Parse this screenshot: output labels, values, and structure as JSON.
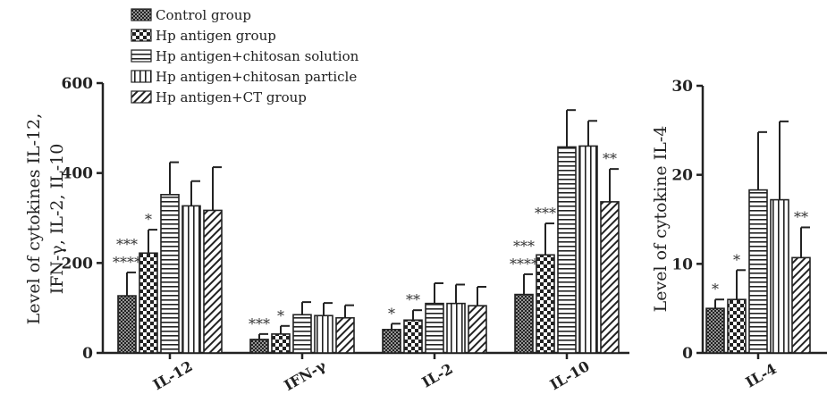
{
  "legend": [
    {
      "label": "Control group",
      "pattern": "pat-cross"
    },
    {
      "label": "Hp antigen group",
      "pattern": "pat-checker"
    },
    {
      "label": "Hp antigen+chitosan solution",
      "pattern": "pat-hstripe"
    },
    {
      "label": "Hp antigen+chitosan particle",
      "pattern": "pat-vstripe"
    },
    {
      "label": "Hp antigen+CT group",
      "pattern": "pat-diag"
    }
  ],
  "colors": {
    "ink": "#222222",
    "bar_fill": "#ffffff"
  },
  "chart_data": [
    {
      "type": "bar",
      "ylabel_lines": [
        "Level of cytokines IL-12,",
        "IFN-γ, IL-2, IL-10"
      ],
      "ylim": [
        0,
        600
      ],
      "yticks": [
        "0",
        "200",
        "400",
        "600"
      ],
      "categories": [
        "IL-12",
        "IFN-γ",
        "IL-2",
        "IL-10"
      ],
      "series": [
        {
          "name": "Control group",
          "values": [
            127,
            30,
            52,
            130
          ],
          "errors": [
            52,
            12,
            13,
            45
          ],
          "sig": [
            "***\n****",
            "***",
            "*",
            "***\n****"
          ]
        },
        {
          "name": "Hp antigen group",
          "values": [
            222,
            42,
            73,
            218
          ],
          "errors": [
            52,
            18,
            22,
            70
          ],
          "sig": [
            "*",
            "*",
            "**",
            "***"
          ]
        },
        {
          "name": "Hp antigen+chitosan solution",
          "values": [
            352,
            85,
            110,
            458
          ],
          "errors": [
            72,
            28,
            45,
            82
          ],
          "sig": [
            "",
            "",
            "",
            ""
          ]
        },
        {
          "name": "Hp antigen+chitosan particle",
          "values": [
            327,
            83,
            110,
            460
          ],
          "errors": [
            55,
            28,
            42,
            56
          ],
          "sig": [
            "",
            "",
            "",
            ""
          ]
        },
        {
          "name": "Hp antigen+CT group",
          "values": [
            317,
            78,
            105,
            336
          ],
          "errors": [
            96,
            28,
            42,
            73
          ],
          "sig": [
            "",
            "",
            "",
            "**"
          ]
        }
      ]
    },
    {
      "type": "bar",
      "ylabel_lines": [
        "Level of cytokine IL-4"
      ],
      "ylim": [
        0,
        30
      ],
      "yticks": [
        "0",
        "10",
        "20",
        "30"
      ],
      "categories": [
        "IL-4"
      ],
      "series": [
        {
          "name": "Control group",
          "values": [
            5
          ],
          "errors": [
            1
          ],
          "sig": [
            "*"
          ]
        },
        {
          "name": "Hp antigen group",
          "values": [
            6
          ],
          "errors": [
            3.3
          ],
          "sig": [
            "*"
          ]
        },
        {
          "name": "Hp antigen+chitosan solution",
          "values": [
            18.3
          ],
          "errors": [
            6.5
          ],
          "sig": [
            ""
          ]
        },
        {
          "name": "Hp antigen+chitosan particle",
          "values": [
            17.2
          ],
          "errors": [
            8.8
          ],
          "sig": [
            ""
          ]
        },
        {
          "name": "Hp antigen+CT group",
          "values": [
            10.7
          ],
          "errors": [
            3.4
          ],
          "sig": [
            "**"
          ]
        }
      ]
    }
  ]
}
